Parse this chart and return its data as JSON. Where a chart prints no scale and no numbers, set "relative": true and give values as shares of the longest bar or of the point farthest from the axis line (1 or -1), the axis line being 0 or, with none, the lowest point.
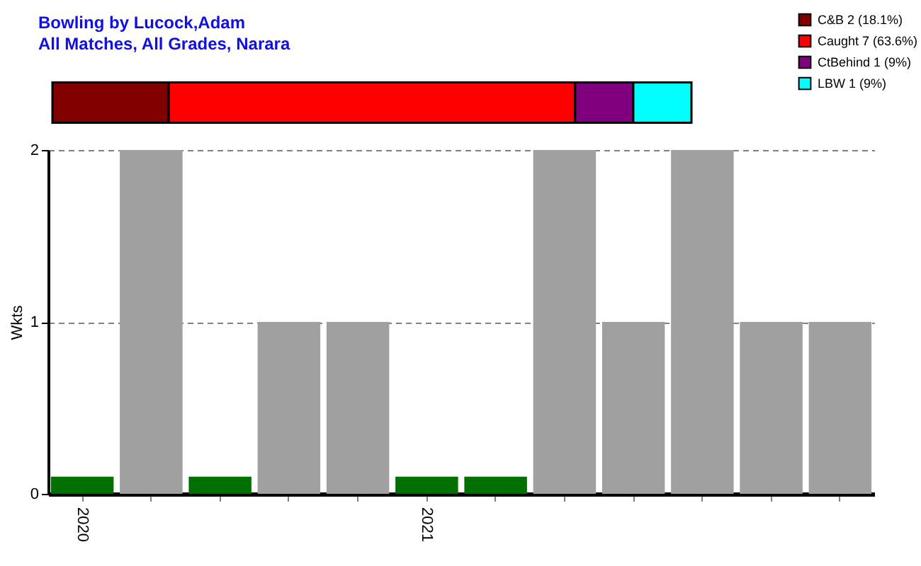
{
  "chart_data": [
    {
      "type": "bar",
      "title": "Bowling by Lucock,Adam",
      "subtitle": "All Matches, All Grades, Narara",
      "orientation": "horizontal",
      "stacked": true,
      "relative": true,
      "categories": [
        null
      ],
      "legend": "top right",
      "series": [
        {
          "name": "C&B 2 (18.1%)",
          "color": "#800000",
          "values": [
            0.182
          ]
        },
        {
          "name": "Caught 7 (63.6%)",
          "color": "#ff0000",
          "values": [
            0.636
          ]
        },
        {
          "name": "CtBehind 1 (9%)",
          "color": "#800080",
          "values": [
            0.091
          ]
        },
        {
          "name": "LBW 1 (9%)",
          "color": "#00ffff",
          "values": [
            0.091
          ]
        }
      ]
    },
    {
      "type": "bar",
      "ylabel": "Wkts",
      "categories": [
        "2020",
        null,
        null,
        null,
        null,
        "2021",
        null,
        null,
        null,
        null,
        null,
        null
      ],
      "ylim": [
        0,
        2
      ],
      "yticks": [
        0,
        1,
        2
      ],
      "grid": "y",
      "series": [
        {
          "color": "#a0a0a0",
          "values": [
            null,
            2,
            null,
            1,
            1,
            null,
            null,
            2,
            1,
            2,
            1,
            1
          ]
        },
        {
          "color": "#007000",
          "values": [
            0.1,
            null,
            0.1,
            null,
            null,
            0.1,
            0.1,
            null,
            null,
            null,
            null,
            null
          ]
        }
      ]
    }
  ]
}
